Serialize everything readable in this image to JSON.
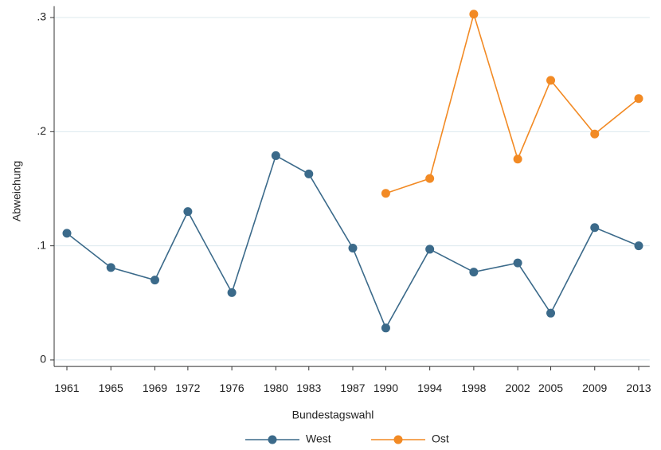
{
  "chart_data": {
    "type": "line",
    "x": [
      1961,
      1965,
      1969,
      1972,
      1976,
      1980,
      1983,
      1987,
      1990,
      1994,
      1998,
      2002,
      2005,
      2009,
      2013
    ],
    "series": [
      {
        "name": "West",
        "color": "#3b6a8a",
        "values": [
          0.111,
          0.081,
          0.07,
          0.13,
          0.059,
          0.179,
          0.163,
          0.098,
          0.028,
          0.097,
          0.077,
          0.085,
          0.041,
          0.116,
          0.1
        ]
      },
      {
        "name": "Ost",
        "color": "#f28a24",
        "values": [
          null,
          null,
          null,
          null,
          null,
          null,
          null,
          null,
          0.146,
          0.159,
          0.303,
          0.176,
          0.245,
          0.198,
          0.229
        ]
      }
    ],
    "xlabel": "Bundestagswahl",
    "ylabel": "Abweichung",
    "xlim": [
      1960,
      2014
    ],
    "ylim": [
      -0.005,
      0.31
    ],
    "xticks": [
      1961,
      1965,
      1969,
      1972,
      1976,
      1980,
      1983,
      1987,
      1990,
      1994,
      1998,
      2002,
      2005,
      2009,
      2013
    ],
    "yticks": [
      {
        "value": 0,
        "label": "0"
      },
      {
        "value": 0.1,
        "label": ".1"
      },
      {
        "value": 0.2,
        "label": ".2"
      },
      {
        "value": 0.3,
        "label": ".3"
      }
    ],
    "grid": true,
    "legend": "bottom"
  }
}
